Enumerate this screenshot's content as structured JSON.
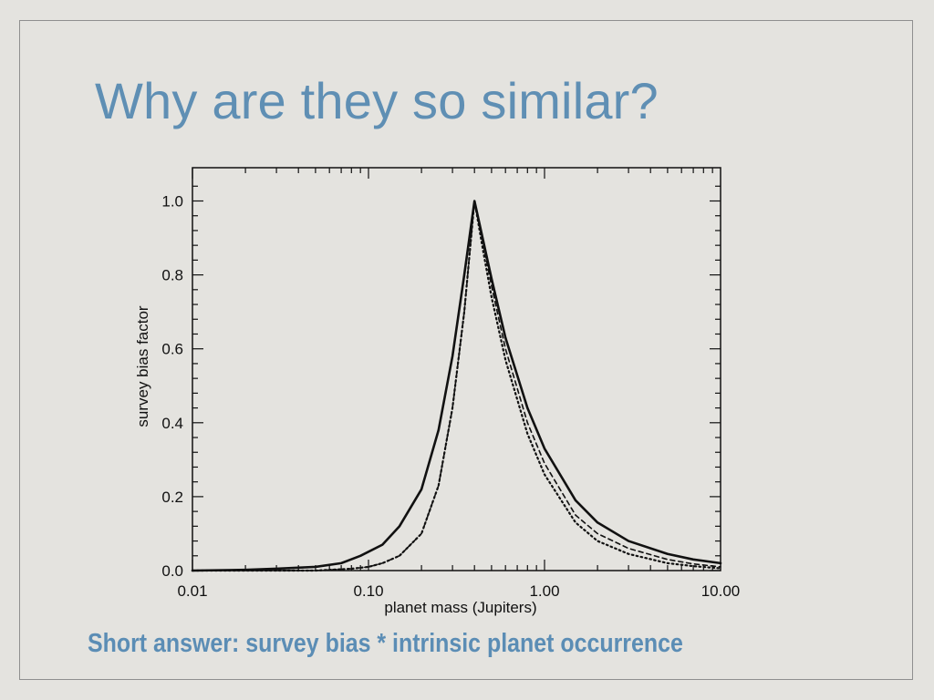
{
  "slide": {
    "title": "Why are they so similar?",
    "answer": "Short answer: survey bias * intrinsic planet occurrence",
    "title_color": "#5f8fb4"
  },
  "chart_data": {
    "type": "line",
    "xlabel": "planet mass (Jupiters)",
    "ylabel": "survey bias factor",
    "x_scale": "log",
    "xlim": [
      0.01,
      10.0
    ],
    "ylim": [
      0.0,
      1.09
    ],
    "x_ticks": [
      0.01,
      0.1,
      1.0,
      10.0
    ],
    "x_tick_labels": [
      "0.01",
      "0.10",
      "1.00",
      "10.00"
    ],
    "y_ticks": [
      0.0,
      0.2,
      0.4,
      0.6,
      0.8,
      1.0
    ],
    "y_tick_labels": [
      "0.0",
      "0.2",
      "0.4",
      "0.6",
      "0.8",
      "1.0"
    ],
    "series": [
      {
        "style": "solid",
        "x": [
          0.01,
          0.02,
          0.03,
          0.05,
          0.07,
          0.09,
          0.12,
          0.15,
          0.2,
          0.25,
          0.3,
          0.35,
          0.4,
          0.5,
          0.6,
          0.8,
          1.0,
          1.5,
          2.0,
          3.0,
          5.0,
          7.0,
          10.0
        ],
        "y": [
          0.0,
          0.002,
          0.005,
          0.01,
          0.02,
          0.04,
          0.07,
          0.12,
          0.22,
          0.38,
          0.58,
          0.8,
          1.0,
          0.79,
          0.63,
          0.44,
          0.33,
          0.19,
          0.13,
          0.08,
          0.045,
          0.03,
          0.02
        ]
      },
      {
        "style": "dotted",
        "x": [
          0.01,
          0.05,
          0.08,
          0.1,
          0.12,
          0.15,
          0.2,
          0.25,
          0.3,
          0.35,
          0.4,
          0.45,
          0.5,
          0.6,
          0.8,
          1.0,
          1.5,
          2.0,
          3.0,
          5.0,
          7.0,
          10.0
        ],
        "y": [
          0.0,
          0.0,
          0.005,
          0.01,
          0.02,
          0.04,
          0.1,
          0.23,
          0.44,
          0.7,
          1.0,
          0.86,
          0.74,
          0.57,
          0.37,
          0.26,
          0.13,
          0.08,
          0.045,
          0.02,
          0.012,
          0.006
        ]
      },
      {
        "style": "dashed",
        "x": [
          0.01,
          0.05,
          0.08,
          0.1,
          0.12,
          0.15,
          0.2,
          0.25,
          0.3,
          0.35,
          0.4,
          0.45,
          0.5,
          0.6,
          0.8,
          1.0,
          1.5,
          2.0,
          3.0,
          5.0,
          7.0,
          10.0
        ],
        "y": [
          0.0,
          0.0,
          0.005,
          0.01,
          0.02,
          0.04,
          0.1,
          0.23,
          0.44,
          0.7,
          1.0,
          0.88,
          0.77,
          0.6,
          0.4,
          0.29,
          0.15,
          0.1,
          0.06,
          0.03,
          0.018,
          0.01
        ]
      }
    ]
  }
}
